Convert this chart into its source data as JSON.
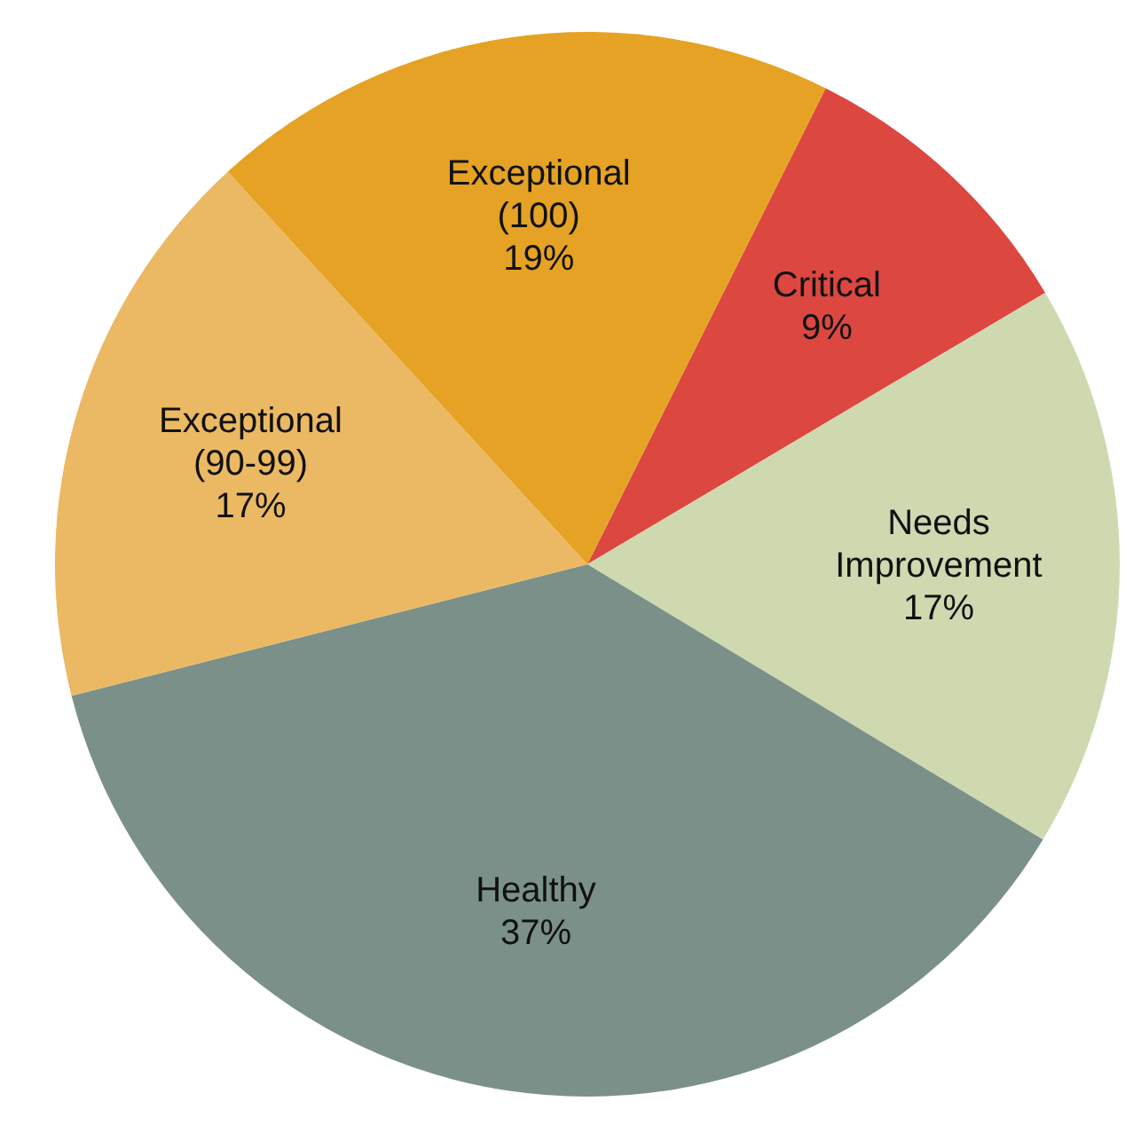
{
  "chart_data": {
    "type": "pie",
    "categories": [
      "Critical",
      "Needs Improvement",
      "Healthy",
      "Exceptional (90-99)",
      "Exceptional (100)"
    ],
    "values": [
      9,
      17,
      37,
      17,
      19
    ],
    "value_labels": [
      "9%",
      "17%",
      "37%",
      "17%",
      "19%"
    ],
    "colors": [
      "#dc4740",
      "#cfd9b0",
      "#7b9088",
      "#ebb963",
      "#e5a224"
    ],
    "legend": false
  }
}
